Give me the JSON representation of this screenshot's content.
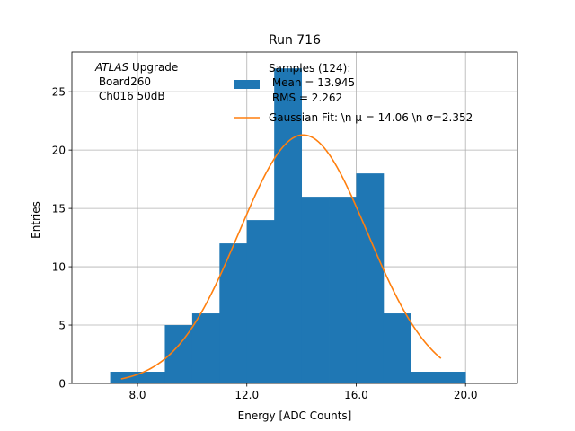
{
  "chart_data": {
    "type": "bar",
    "title": "Run 716",
    "xlabel": "Energy [ADC Counts]",
    "ylabel": "Entries",
    "xlim": [
      5.6,
      21.9
    ],
    "ylim": [
      0,
      28.4
    ],
    "grid": true,
    "x_ticks": [
      8.0,
      12.0,
      16.0,
      20.0
    ],
    "x_tick_labels": [
      "8.0",
      "12.0",
      "16.0",
      "20.0"
    ],
    "y_ticks": [
      0,
      5,
      10,
      15,
      20,
      25
    ],
    "y_tick_labels": [
      "0",
      "5",
      "10",
      "15",
      "20",
      "25"
    ],
    "histogram": {
      "name": "Samples",
      "color": "#1f77b4",
      "bin_edges": [
        7,
        8,
        9,
        10,
        11,
        12,
        13,
        14,
        15,
        16,
        17,
        18,
        19,
        20
      ],
      "counts": [
        1,
        1,
        5,
        6,
        12,
        14,
        27,
        16,
        16,
        18,
        6,
        1,
        1
      ]
    },
    "fit": {
      "name": "Gaussian Fit",
      "color": "#ff7f0e",
      "amplitude": 21.3,
      "mu": 14.06,
      "sigma": 2.352,
      "x_range": [
        7.4,
        19.1
      ]
    },
    "legend": {
      "position": "top-center",
      "entries": [
        {
          "series": "histogram",
          "lines": [
            "Samples (124):",
            " Mean = 13.945",
            " RMS = 2.262"
          ]
        },
        {
          "series": "fit",
          "lines": [
            "Gaussian Fit: \\n μ = 14.06 \\n σ=2.352"
          ]
        }
      ]
    },
    "annotation": {
      "position": "top-left",
      "atlas": "ATLAS",
      "upgrade": " Upgrade",
      "lines": [
        " Board260",
        " Ch016 50dB"
      ]
    }
  }
}
